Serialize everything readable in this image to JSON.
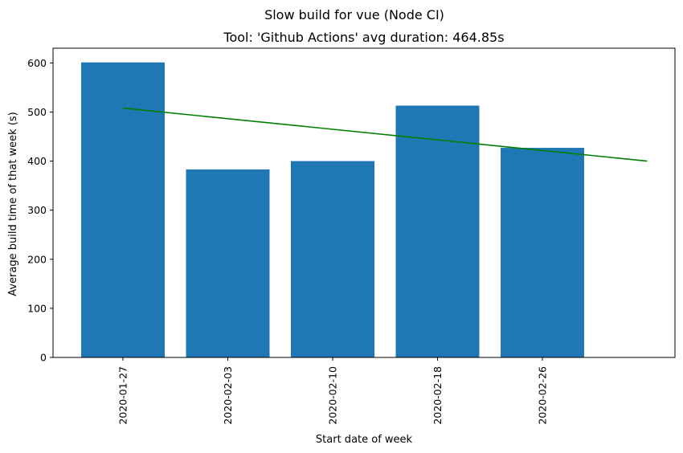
{
  "chart_data": {
    "type": "bar",
    "suptitle": "Slow build for vue (Node CI)",
    "title": "Tool: 'Github Actions' avg duration: 464.85s",
    "xlabel": "Start date of week",
    "ylabel": "Average build time of that week (s)",
    "categories": [
      "2020-01-27",
      "2020-02-03",
      "2020-02-10",
      "2020-02-18",
      "2020-02-26"
    ],
    "values": [
      601,
      383,
      400,
      513,
      427
    ],
    "ylim": [
      0,
      630
    ],
    "yticks": [
      0,
      100,
      200,
      300,
      400,
      500,
      600
    ],
    "bar_color": "#1f77b4",
    "trend": {
      "color": "#008000",
      "start": 508,
      "end": 400
    },
    "grid": false,
    "legend": "none"
  }
}
